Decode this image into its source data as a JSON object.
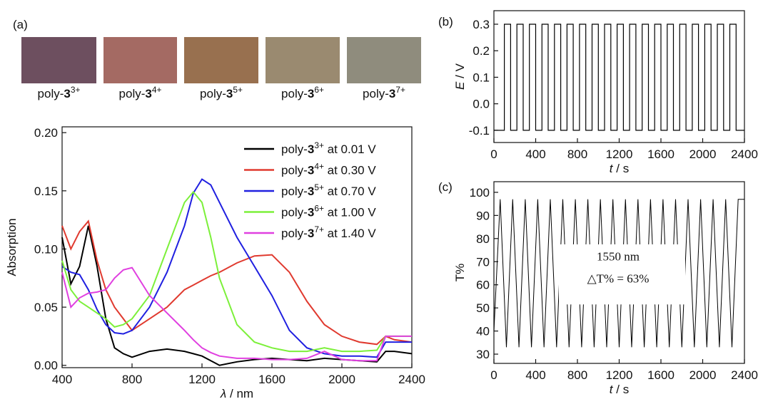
{
  "swatches": [
    {
      "color": "#6d4f5f",
      "label": {
        "prefix": "poly-",
        "bold": "3",
        "sup": "3+"
      }
    },
    {
      "color": "#a46a63",
      "label": {
        "prefix": "poly-",
        "bold": "3",
        "sup": "4+"
      }
    },
    {
      "color": "#98704f",
      "label": {
        "prefix": "poly-",
        "bold": "3",
        "sup": "5+"
      }
    },
    {
      "color": "#9a8a70",
      "label": {
        "prefix": "poly-",
        "bold": "3",
        "sup": "6+"
      }
    },
    {
      "color": "#8f8c7d",
      "label": {
        "prefix": "poly-",
        "bold": "3",
        "sup": "7+"
      }
    }
  ],
  "chart_data": [
    {
      "type": "line",
      "panel_label": "(a)",
      "xlabel": {
        "italic": "λ",
        "text": " / nm"
      },
      "ylabel": "Absorption",
      "legend": "upper right",
      "x": [
        400,
        450,
        500,
        550,
        600,
        650,
        700,
        750,
        800,
        900,
        1000,
        1100,
        1150,
        1200,
        1250,
        1300,
        1400,
        1500,
        1600,
        1700,
        1800,
        1900,
        2000,
        2100,
        2200,
        2250,
        2300,
        2400
      ],
      "xlim": [
        400,
        2400
      ],
      "xticks": [
        400,
        800,
        1200,
        1600,
        2000,
        2400
      ],
      "ylim": [
        -0.002,
        0.205
      ],
      "yticks": [
        {
          "value": 0,
          "label": "0.00"
        },
        {
          "value": 0.05,
          "label": "0.05"
        },
        {
          "value": 0.1,
          "label": "0.10"
        },
        {
          "value": 0.15,
          "label": "0.15"
        },
        {
          "value": 0.2,
          "label": "0.20"
        }
      ],
      "series": [
        {
          "name": {
            "prefix": "poly-",
            "bold": "3",
            "sup": "3+",
            "suffix": " at 0.01 V"
          },
          "color": "#000000",
          "values": [
            0.11,
            0.07,
            0.085,
            0.12,
            0.085,
            0.04,
            0.015,
            0.01,
            0.007,
            0.012,
            0.014,
            0.012,
            0.01,
            0.008,
            0.004,
            0,
            0.003,
            0.005,
            0.006,
            0.005,
            0.004,
            0.006,
            0.005,
            0.004,
            0.003,
            0.012,
            0.012,
            0.01
          ]
        },
        {
          "name": {
            "prefix": "poly-",
            "bold": "3",
            "sup": "4+",
            "suffix": " at 0.30 V"
          },
          "color": "#e03a2f",
          "values": [
            0.12,
            0.1,
            0.115,
            0.124,
            0.09,
            0.065,
            0.05,
            0.04,
            0.03,
            0.04,
            0.05,
            0.065,
            0.069,
            0.073,
            0.077,
            0.08,
            0.088,
            0.094,
            0.095,
            0.08,
            0.055,
            0.035,
            0.025,
            0.02,
            0.018,
            0.025,
            0.022,
            0.02
          ]
        },
        {
          "name": {
            "prefix": "poly-",
            "bold": "3",
            "sup": "5+",
            "suffix": " at 0.70 V"
          },
          "color": "#2020e0",
          "values": [
            0.085,
            0.08,
            0.078,
            0.065,
            0.048,
            0.035,
            0.028,
            0.027,
            0.03,
            0.05,
            0.08,
            0.12,
            0.148,
            0.16,
            0.155,
            0.14,
            0.11,
            0.085,
            0.06,
            0.03,
            0.015,
            0.01,
            0.008,
            0.008,
            0.007,
            0.02,
            0.02,
            0.02
          ]
        },
        {
          "name": {
            "prefix": "poly-",
            "bold": "3",
            "sup": "6+",
            "suffix": " at 1.00 V"
          },
          "color": "#7cf03a",
          "values": [
            0.09,
            0.065,
            0.055,
            0.05,
            0.045,
            0.04,
            0.033,
            0.035,
            0.04,
            0.06,
            0.1,
            0.14,
            0.149,
            0.14,
            0.11,
            0.075,
            0.035,
            0.02,
            0.015,
            0.012,
            0.012,
            0.015,
            0.012,
            0.012,
            0.013,
            0.025,
            0.025,
            0.025
          ]
        },
        {
          "name": {
            "prefix": "poly-",
            "bold": "3",
            "sup": "7+",
            "suffix": " at 1.40 V"
          },
          "color": "#e040e0",
          "values": [
            0.08,
            0.05,
            0.058,
            0.062,
            0.063,
            0.065,
            0.075,
            0.082,
            0.084,
            0.06,
            0.045,
            0.03,
            0.022,
            0.015,
            0.011,
            0.008,
            0.006,
            0.006,
            0.005,
            0.005,
            0.006,
            0.012,
            0.005,
            0.004,
            0.004,
            0.025,
            0.025,
            0.025
          ]
        }
      ]
    },
    {
      "type": "step",
      "panel_label": "(b)",
      "xlabel": {
        "italic": "t",
        "text": " / s"
      },
      "ylabel": {
        "italic": "E",
        "text": " / V"
      },
      "color": "#000000",
      "x": [
        0,
        100,
        160,
        220,
        280,
        340,
        400,
        460,
        520,
        580,
        640,
        700,
        760,
        820,
        880,
        940,
        1000,
        1060,
        1120,
        1180,
        1240,
        1300,
        1360,
        1420,
        1480,
        1540,
        1600,
        1660,
        1720,
        1780,
        1840,
        1900,
        1960,
        2020,
        2080,
        2140,
        2200,
        2260,
        2320,
        2400
      ],
      "values": [
        -0.1,
        0.3,
        -0.1,
        0.3,
        -0.1,
        0.3,
        -0.1,
        0.3,
        -0.1,
        0.3,
        -0.1,
        0.3,
        -0.1,
        0.3,
        -0.1,
        0.3,
        -0.1,
        0.3,
        -0.1,
        0.3,
        -0.1,
        0.3,
        -0.1,
        0.3,
        -0.1,
        0.3,
        -0.1,
        0.3,
        -0.1,
        0.3,
        -0.1,
        0.3,
        -0.1,
        0.3,
        -0.1,
        0.3,
        -0.1,
        0.3,
        -0.1,
        -0.1
      ],
      "xlim": [
        0,
        2400
      ],
      "xticks": [
        0,
        400,
        800,
        1200,
        1600,
        2000,
        2400
      ],
      "ylim": [
        -0.146,
        0.351
      ],
      "yticks": [
        -0.1,
        {
          "value": 0,
          "label": "0.0"
        },
        0.1,
        0.2,
        0.3
      ]
    },
    {
      "type": "line",
      "panel_label": "(c)",
      "xlabel": {
        "italic": "t",
        "text": " / s"
      },
      "ylabel": "T%",
      "color": "#000000",
      "annotations": [
        "1550 nm",
        "△T% = 63%"
      ],
      "annotation_color": "#e03a3a",
      "x": [
        0,
        60,
        120,
        180,
        240,
        300,
        360,
        420,
        480,
        540,
        600,
        660,
        720,
        780,
        840,
        900,
        960,
        1020,
        1080,
        1140,
        1200,
        1260,
        1320,
        1380,
        1440,
        1500,
        1560,
        1620,
        1680,
        1740,
        1800,
        1860,
        1920,
        1980,
        2040,
        2100,
        2160,
        2220,
        2280,
        2340,
        2400
      ],
      "values": [
        40,
        97,
        33,
        97,
        33,
        97,
        33,
        97,
        33,
        97,
        33,
        97,
        33,
        97,
        33,
        97,
        33,
        97,
        33,
        97,
        33,
        97,
        33,
        97,
        33,
        97,
        33,
        97,
        33,
        97,
        33,
        97,
        33,
        97,
        33,
        97,
        33,
        97,
        33,
        97,
        97
      ],
      "xlim": [
        0,
        2400
      ],
      "xticks": [
        0,
        400,
        800,
        1200,
        1600,
        2000,
        2400
      ],
      "ylim": [
        26,
        104.6
      ],
      "yticks": [
        30,
        40,
        50,
        60,
        70,
        80,
        90,
        100
      ]
    }
  ]
}
